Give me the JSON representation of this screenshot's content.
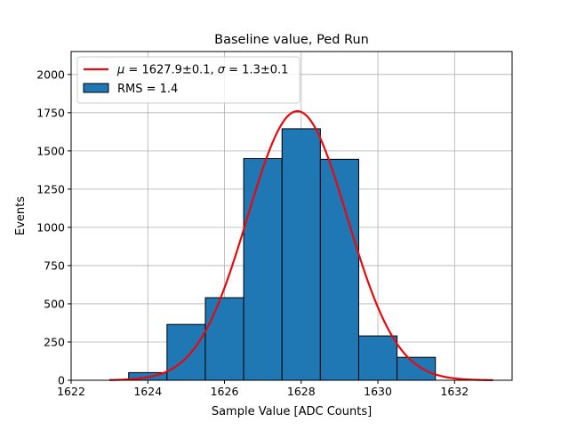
{
  "chart_data": {
    "type": "bar",
    "title": "Baseline value, Ped Run",
    "xlabel": "Sample Value [ADC Counts]",
    "ylabel": "Events",
    "xlim": [
      1622,
      1633.5
    ],
    "ylim": [
      0,
      2150
    ],
    "grid": true,
    "legend_position": "top-left",
    "xticks": [
      "1622",
      "1624",
      "1626",
      "1628",
      "1630",
      "1632"
    ],
    "xtick_values": [
      1622,
      1624,
      1626,
      1628,
      1630,
      1632
    ],
    "yticks": [
      "0",
      "250",
      "500",
      "750",
      "1000",
      "1250",
      "1500",
      "1750",
      "2000"
    ],
    "ytick_values": [
      0,
      250,
      500,
      750,
      1000,
      1250,
      1500,
      1750,
      2000
    ],
    "histogram": {
      "name": "RMS = 1.4",
      "color": "#1f77b4",
      "bin_edges": [
        1623.5,
        1624.5,
        1625.5,
        1626.5,
        1627.5,
        1628.5,
        1629.5,
        1630.5,
        1631.5
      ],
      "counts": [
        50,
        365,
        540,
        1450,
        1645,
        1445,
        290,
        150
      ]
    },
    "fit": {
      "name_parts": [
        "μ",
        " = 1627.9±0.1, ",
        "σ",
        " = 1.3±0.1"
      ],
      "color": "#e8090e",
      "mean": 1627.9,
      "sigma": 1.3,
      "amplitude": 1760,
      "x_range": [
        1623,
        1633
      ]
    }
  }
}
